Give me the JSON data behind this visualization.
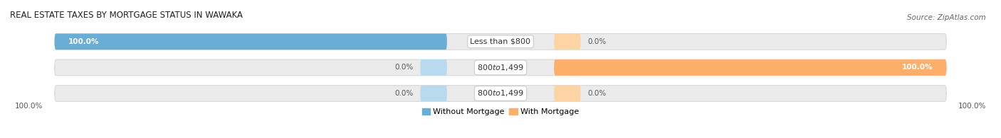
{
  "title": "Real Estate Taxes by Mortgage Status in Wawaka",
  "source": "Source: ZipAtlas.com",
  "rows": [
    {
      "label": "Less than $800",
      "without_mortgage": 100.0,
      "with_mortgage": 0.0
    },
    {
      "label": "$800 to $1,499",
      "without_mortgage": 0.0,
      "with_mortgage": 100.0
    },
    {
      "label": "$800 to $1,499",
      "without_mortgage": 0.0,
      "with_mortgage": 0.0
    }
  ],
  "color_without": "#6aaed6",
  "color_with": "#fdae6b",
  "color_without_light": "#b8d9ee",
  "color_with_light": "#fdd5a5",
  "bar_bg": "#ebebeb",
  "bar_bg_edge": "#d8d8d8",
  "figsize": [
    14.06,
    1.95
  ],
  "dpi": 100,
  "title_fontsize": 8.5,
  "bar_label_fontsize": 8.0,
  "pct_fontsize": 7.5,
  "source_fontsize": 7.5,
  "legend_fontsize": 8.0
}
